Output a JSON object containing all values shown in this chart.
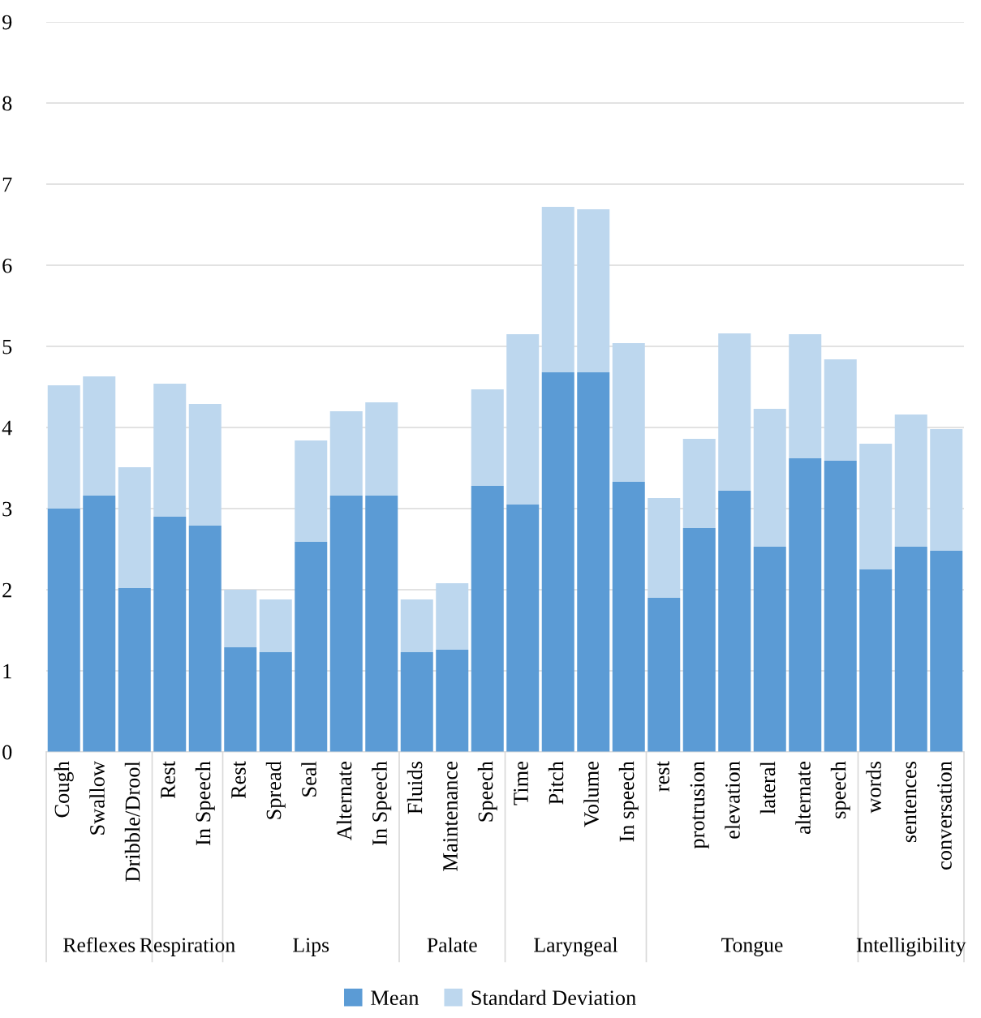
{
  "chart_data": {
    "type": "bar",
    "stacked": true,
    "categories": [
      "Cough",
      "Swallow",
      "Dribble/Drool",
      "Rest",
      "In Speech",
      "Rest",
      "Spread",
      "Seal",
      "Alternate",
      "In Speech",
      "Fluids",
      "Maintenance",
      "Speech",
      "Time",
      "Pitch",
      "Volume",
      "In speech",
      "rest",
      "protrusion",
      "elevation",
      "lateral",
      "alternate",
      "speech",
      "words",
      "sentences",
      "conversation"
    ],
    "series": [
      {
        "name": "Mean",
        "color": "#5b9bd5",
        "values": [
          3.0,
          3.16,
          2.02,
          2.9,
          2.79,
          1.29,
          1.23,
          2.59,
          3.16,
          3.16,
          1.23,
          1.26,
          3.28,
          3.05,
          4.68,
          4.68,
          3.33,
          1.9,
          2.76,
          3.22,
          2.53,
          3.62,
          3.59,
          2.25,
          2.53,
          2.48
        ]
      },
      {
        "name": "Standard Deviation",
        "color": "#bdd7ee",
        "values": [
          1.52,
          1.47,
          1.49,
          1.64,
          1.5,
          0.71,
          0.65,
          1.25,
          1.04,
          1.15,
          0.65,
          0.82,
          1.19,
          2.1,
          2.04,
          2.01,
          1.71,
          1.23,
          1.1,
          1.94,
          1.7,
          1.53,
          1.25,
          1.55,
          1.63,
          1.5
        ]
      }
    ],
    "ylim": [
      0,
      9
    ],
    "yticks": [
      0,
      1,
      2,
      3,
      4,
      5,
      6,
      7,
      8,
      9
    ],
    "grid": "y",
    "legend": "bottom",
    "annotations": [
      "Reflexes",
      "Respiration",
      "Lips",
      "Palate",
      "Laryngeal",
      "Tongue",
      "Intelligibility"
    ]
  }
}
